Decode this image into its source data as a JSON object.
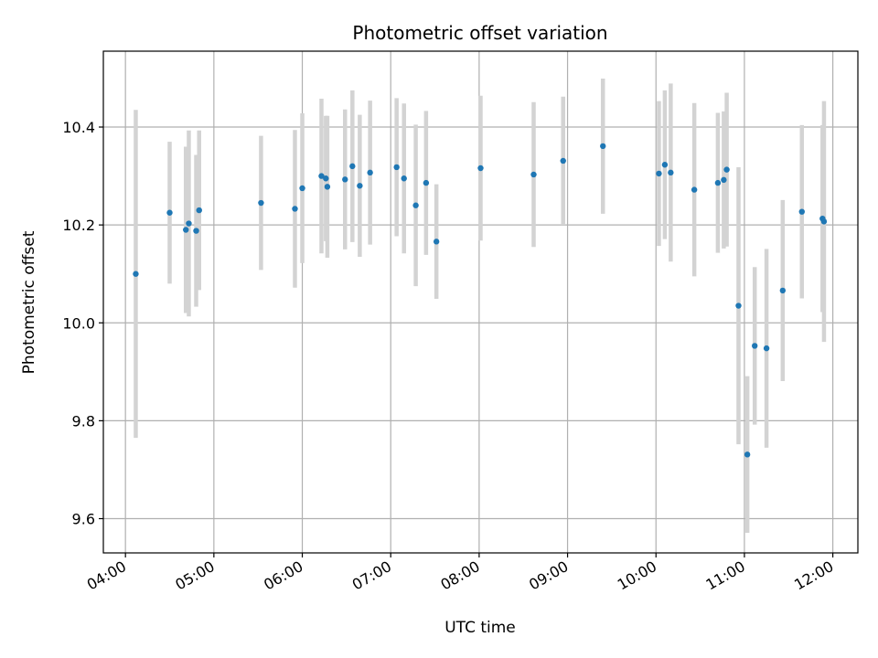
{
  "chart_data": {
    "type": "scatter",
    "title": "Photometric offset variation",
    "xlabel": "UTC time",
    "ylabel": "Photometric offset",
    "xlim": [
      "03:45",
      "12:17"
    ],
    "ylim": [
      9.53,
      10.555
    ],
    "xticks": [
      "04:00",
      "05:00",
      "06:00",
      "07:00",
      "08:00",
      "09:00",
      "10:00",
      "11:00",
      "12:00"
    ],
    "yticks": [
      "9.6",
      "9.8",
      "10.0",
      "10.2",
      "10.4"
    ],
    "grid": true,
    "colors": {
      "point": "#1f77b4",
      "errorbar": "#d3d3d3",
      "grid": "#b0b0b0"
    },
    "points": [
      {
        "x": "04:07",
        "y": 10.1,
        "yerr": 0.335
      },
      {
        "x": "04:30",
        "y": 10.225,
        "yerr": 0.145
      },
      {
        "x": "04:41",
        "y": 10.19,
        "yerr": 0.17
      },
      {
        "x": "04:43",
        "y": 10.203,
        "yerr": 0.19
      },
      {
        "x": "04:48",
        "y": 10.188,
        "yerr": 0.155
      },
      {
        "x": "04:50",
        "y": 10.23,
        "yerr": 0.163
      },
      {
        "x": "05:32",
        "y": 10.245,
        "yerr": 0.137
      },
      {
        "x": "05:55",
        "y": 10.233,
        "yerr": 0.161
      },
      {
        "x": "06:00",
        "y": 10.275,
        "yerr": 0.153
      },
      {
        "x": "06:13",
        "y": 10.3,
        "yerr": 0.158
      },
      {
        "x": "06:16",
        "y": 10.295,
        "yerr": 0.128
      },
      {
        "x": "06:17",
        "y": 10.278,
        "yerr": 0.145
      },
      {
        "x": "06:29",
        "y": 10.293,
        "yerr": 0.143
      },
      {
        "x": "06:34",
        "y": 10.32,
        "yerr": 0.155
      },
      {
        "x": "06:39",
        "y": 10.28,
        "yerr": 0.145
      },
      {
        "x": "06:46",
        "y": 10.307,
        "yerr": 0.147
      },
      {
        "x": "07:04",
        "y": 10.318,
        "yerr": 0.141
      },
      {
        "x": "07:09",
        "y": 10.295,
        "yerr": 0.153
      },
      {
        "x": "07:17",
        "y": 10.24,
        "yerr": 0.165
      },
      {
        "x": "07:24",
        "y": 10.286,
        "yerr": 0.147
      },
      {
        "x": "07:31",
        "y": 10.166,
        "yerr": 0.117
      },
      {
        "x": "08:01",
        "y": 10.316,
        "yerr": 0.148
      },
      {
        "x": "08:37",
        "y": 10.303,
        "yerr": 0.148
      },
      {
        "x": "08:57",
        "y": 10.331,
        "yerr": 0.131
      },
      {
        "x": "09:24",
        "y": 10.361,
        "yerr": 0.138
      },
      {
        "x": "10:02",
        "y": 10.305,
        "yerr": 0.148
      },
      {
        "x": "10:06",
        "y": 10.323,
        "yerr": 0.152
      },
      {
        "x": "10:10",
        "y": 10.307,
        "yerr": 0.182
      },
      {
        "x": "10:26",
        "y": 10.272,
        "yerr": 0.177
      },
      {
        "x": "10:42",
        "y": 10.286,
        "yerr": 0.143
      },
      {
        "x": "10:46",
        "y": 10.292,
        "yerr": 0.14
      },
      {
        "x": "10:48",
        "y": 10.313,
        "yerr": 0.157
      },
      {
        "x": "10:56",
        "y": 10.035,
        "yerr": 0.283
      },
      {
        "x": "11:02",
        "y": 9.731,
        "yerr": 0.16
      },
      {
        "x": "11:07",
        "y": 9.953,
        "yerr": 0.161
      },
      {
        "x": "11:15",
        "y": 9.948,
        "yerr": 0.203
      },
      {
        "x": "11:26",
        "y": 10.066,
        "yerr": 0.185
      },
      {
        "x": "11:39",
        "y": 10.227,
        "yerr": 0.177
      },
      {
        "x": "11:53",
        "y": 10.213,
        "yerr": 0.191
      },
      {
        "x": "11:54",
        "y": 10.207,
        "yerr": 0.246
      }
    ]
  }
}
